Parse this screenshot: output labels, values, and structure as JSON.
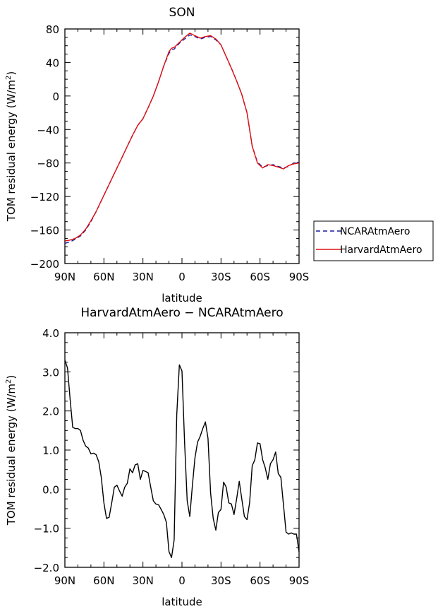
{
  "chart_data": [
    {
      "type": "line",
      "title": "SON",
      "xlabel": "latitude",
      "ylabel": "TOM residual energy (W/m²)",
      "ylabel_main": "TOM residual energy (W/m",
      "ylabel_sup": "2",
      "ylabel_close": ")",
      "xlim": [
        90,
        -90
      ],
      "ylim": [
        -200,
        80
      ],
      "x_ticks": [
        90,
        60,
        30,
        0,
        -30,
        -60,
        -90
      ],
      "x_tick_labels": [
        "90N",
        "60N",
        "30N",
        "0",
        "30S",
        "60S",
        "90S"
      ],
      "y_ticks": [
        80,
        40,
        0,
        -40,
        -80,
        -120,
        -160,
        -200
      ],
      "y_tick_labels": [
        "80",
        "40",
        "0",
        "−40",
        "−80",
        "−120",
        "−160",
        "−200"
      ],
      "legend": {
        "placement": "right"
      },
      "series": [
        {
          "name": "NCARAtmAero",
          "color": "#1a1aa6",
          "dash": "dashed",
          "x": [
            90,
            86,
            82,
            78,
            74,
            70,
            66,
            62,
            58,
            54,
            50,
            46,
            42,
            38,
            34,
            30,
            26,
            22,
            18,
            14,
            10,
            8,
            6,
            2,
            -2,
            -6,
            -10,
            -14,
            -18,
            -22,
            -26,
            -30,
            -34,
            -38,
            -42,
            -46,
            -50,
            -54,
            -58,
            -62,
            -66,
            -70,
            -74,
            -78,
            -82,
            -86,
            -90
          ],
          "y": [
            -176,
            -174,
            -171,
            -167,
            -160,
            -150,
            -138,
            -125,
            -112,
            -99,
            -86,
            -73,
            -60,
            -47,
            -35,
            -27,
            -14,
            0,
            17,
            36,
            51,
            55,
            56,
            63,
            68,
            73,
            71,
            68,
            70,
            71,
            67,
            61,
            47,
            33,
            18,
            2,
            -20,
            -60,
            -79,
            -85,
            -83,
            -82,
            -84,
            -86,
            -84,
            -80,
            -79
          ]
        },
        {
          "name": "HarvardAtmAero",
          "color": "#e01010",
          "dash": "solid",
          "x": [
            90,
            86,
            82,
            78,
            74,
            70,
            66,
            62,
            58,
            54,
            50,
            46,
            42,
            38,
            34,
            30,
            26,
            22,
            18,
            14,
            10,
            8,
            6,
            2,
            -2,
            -6,
            -10,
            -14,
            -18,
            -22,
            -26,
            -30,
            -34,
            -38,
            -42,
            -46,
            -50,
            -54,
            -58,
            -62,
            -66,
            -70,
            -74,
            -78,
            -82,
            -86,
            -90
          ],
          "y": [
            -173,
            -172,
            -170,
            -166,
            -159,
            -149,
            -138,
            -125,
            -112,
            -99,
            -86,
            -73,
            -60,
            -47,
            -35,
            -27,
            -14,
            0,
            17,
            36,
            53,
            57,
            58,
            64,
            70,
            75,
            72,
            69,
            71,
            72,
            68,
            61,
            47,
            33,
            18,
            2,
            -20,
            -60,
            -80,
            -86,
            -82,
            -83,
            -85,
            -87,
            -83,
            -81,
            -80
          ]
        }
      ]
    },
    {
      "type": "line",
      "title": "HarvardAtmAero − NCARAtmAero",
      "xlabel": "latitude",
      "ylabel": "TOM residual energy (W/m²)",
      "ylabel_main": "TOM residual energy (W/m",
      "ylabel_sup": "2",
      "ylabel_close": ")",
      "xlim": [
        90,
        -90
      ],
      "ylim": [
        -2.0,
        4.0
      ],
      "x_ticks": [
        90,
        60,
        30,
        0,
        -30,
        -60,
        -90
      ],
      "x_tick_labels": [
        "90N",
        "60N",
        "30N",
        "0",
        "30S",
        "60S",
        "90S"
      ],
      "y_ticks": [
        4.0,
        3.0,
        2.0,
        1.0,
        0.0,
        -1.0,
        -2.0
      ],
      "y_tick_labels": [
        "4.0",
        "3.0",
        "2.0",
        "1.0",
        "0.0",
        "−1.0",
        "−2.0"
      ],
      "series": [
        {
          "color": "#000000",
          "x": [
            90,
            88,
            86,
            84,
            82,
            80,
            78,
            76,
            74,
            72,
            70,
            68,
            66,
            64,
            62,
            60,
            58,
            56,
            54,
            52,
            50,
            48,
            46,
            44,
            42,
            40,
            38,
            36,
            34,
            32,
            30,
            28,
            26,
            24,
            22,
            20,
            18,
            16,
            14,
            12,
            10,
            8,
            6,
            4,
            2,
            0,
            -2,
            -4,
            -6,
            -8,
            -10,
            -12,
            -14,
            -16,
            -18,
            -20,
            -22,
            -24,
            -26,
            -28,
            -30,
            -32,
            -34,
            -36,
            -38,
            -40,
            -42,
            -44,
            -46,
            -48,
            -50,
            -52,
            -54,
            -56,
            -58,
            -60,
            -62,
            -64,
            -66,
            -68,
            -70,
            -72,
            -74,
            -76,
            -78,
            -80,
            -82,
            -84,
            -86,
            -88,
            -90
          ],
          "y": [
            3.3,
            3.1,
            2.3,
            1.58,
            1.55,
            1.55,
            1.5,
            1.25,
            1.1,
            1.05,
            0.9,
            0.92,
            0.88,
            0.7,
            0.3,
            -0.35,
            -0.75,
            -0.72,
            -0.35,
            0.05,
            0.1,
            -0.05,
            -0.18,
            0.05,
            0.15,
            0.52,
            0.42,
            0.62,
            0.65,
            0.25,
            0.48,
            0.45,
            0.42,
            0.05,
            -0.3,
            -0.38,
            -0.4,
            -0.52,
            -0.65,
            -0.85,
            -1.6,
            -1.75,
            -1.3,
            1.9,
            3.18,
            3.02,
            1.2,
            -0.3,
            -0.7,
            0.1,
            0.8,
            1.2,
            1.35,
            1.55,
            1.72,
            1.3,
            -0.1,
            -0.75,
            -1.05,
            -0.6,
            -0.52,
            0.18,
            0.05,
            -0.35,
            -0.38,
            -0.65,
            -0.25,
            0.2,
            -0.25,
            -0.7,
            -0.78,
            -0.35,
            0.6,
            0.75,
            1.18,
            1.16,
            0.75,
            0.55,
            0.25,
            0.65,
            0.75,
            0.95,
            0.4,
            0.3,
            -0.4,
            -1.1,
            -1.15,
            -1.12,
            -1.15,
            -1.15,
            -1.6
          ]
        }
      ]
    }
  ]
}
